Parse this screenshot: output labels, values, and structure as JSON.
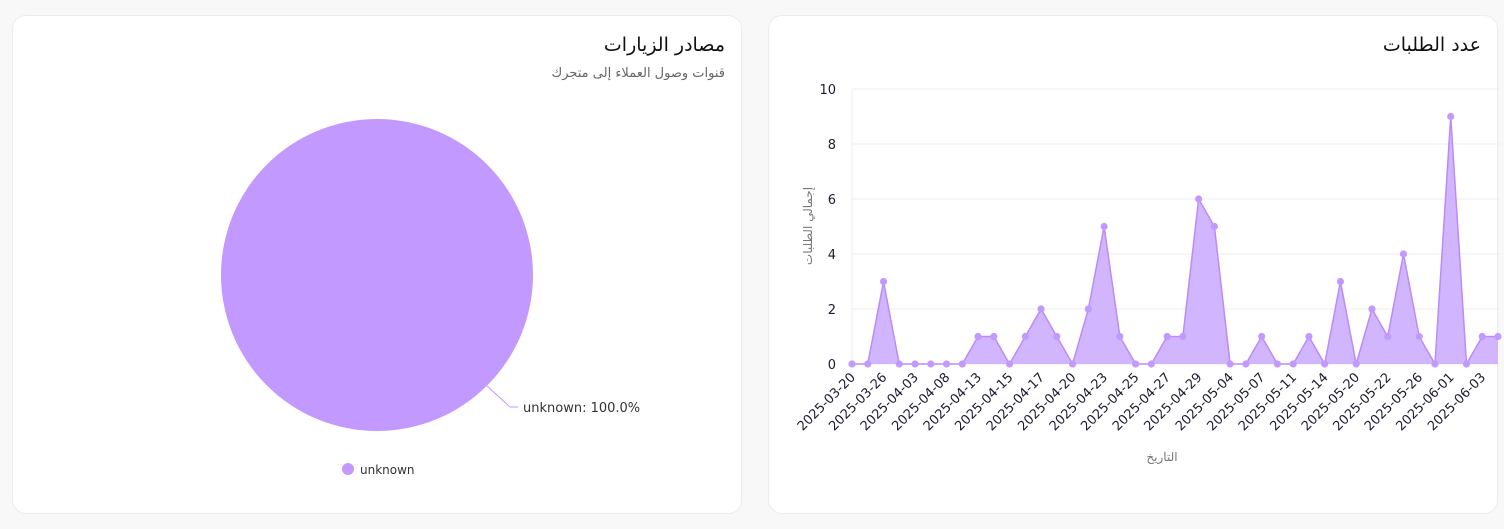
{
  "colors": {
    "accent": "#c299ff",
    "line": "#b98cf8",
    "fill": "#c9a8ff"
  },
  "pie_card": {
    "title": "مصادر الزيارات",
    "subtitle": "قنوات وصول العملاء إلى متجرك"
  },
  "line_card": {
    "title": "عدد الطلبات"
  },
  "chart_data": [
    {
      "type": "area",
      "title": "عدد الطلبات",
      "xlabel": "التاريخ",
      "ylabel": "إجمالي الطلبات",
      "ylim": [
        0,
        10
      ],
      "yticks": [
        "0",
        "2",
        "4",
        "6",
        "8",
        "10"
      ],
      "grid": true,
      "xtick_labels": [
        "2025-03-20",
        "2025-03-26",
        "2025-04-03",
        "2025-04-08",
        "2025-04-13",
        "2025-04-15",
        "2025-04-17",
        "2025-04-20",
        "2025-04-23",
        "2025-04-25",
        "2025-04-27",
        "2025-04-29",
        "2025-05-04",
        "2025-05-07",
        "2025-05-11",
        "2025-05-14",
        "2025-05-20",
        "2025-05-22",
        "2025-05-26",
        "2025-06-01",
        "2025-06-03"
      ],
      "values": [
        0,
        0,
        3,
        0,
        0,
        0,
        0,
        0,
        1,
        1,
        0,
        1,
        2,
        1,
        0,
        2,
        5,
        1,
        0,
        0,
        1,
        1,
        6,
        5,
        0,
        0,
        1,
        0,
        0,
        1,
        0,
        3,
        0,
        2,
        1,
        4,
        1,
        0,
        9,
        0,
        1,
        1
      ]
    },
    {
      "type": "pie",
      "title": "مصادر الزيارات",
      "slices": [
        {
          "label": "unknown",
          "value": 100.0,
          "data_label": "unknown: 100.0%"
        }
      ],
      "legend": [
        {
          "label": "unknown"
        }
      ],
      "legend_position": "bottom"
    }
  ]
}
